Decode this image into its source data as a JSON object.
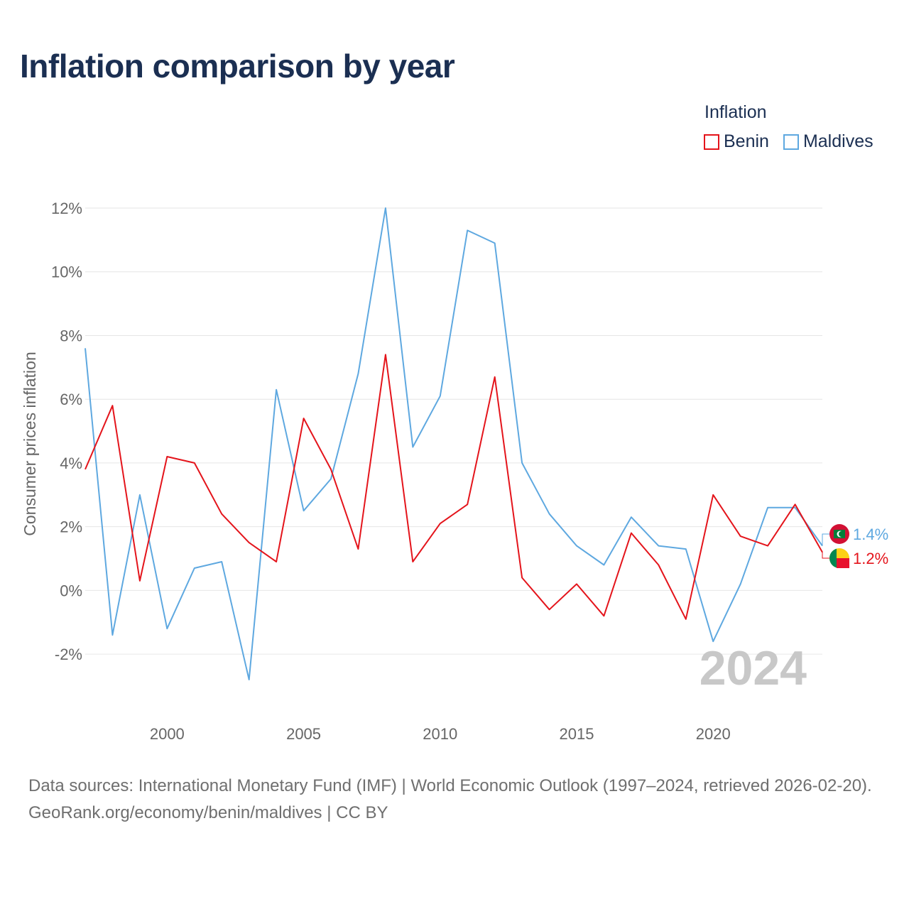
{
  "title": "Inflation comparison by year",
  "legend": {
    "title": "Inflation",
    "items": [
      {
        "label": "Benin",
        "color": "#e4141b"
      },
      {
        "label": "Maldives",
        "color": "#5ea8e0"
      }
    ]
  },
  "footer": {
    "sources": "Data sources: International Monetary Fund (IMF) | World Economic Outlook (1997–2024, retrieved 2026-02-20).",
    "credit": "GeoRank.org/economy/benin/maldives | CC BY"
  },
  "chart_data": {
    "type": "line",
    "title": "Inflation comparison by year",
    "xlabel": "",
    "ylabel": "Consumer prices inflation",
    "xlim": [
      1997,
      2024
    ],
    "ylim": [
      -3,
      12
    ],
    "yticks": [
      -2,
      0,
      2,
      4,
      6,
      8,
      10,
      12
    ],
    "ytick_labels": [
      "-2%",
      "0%",
      "2%",
      "4%",
      "6%",
      "8%",
      "10%",
      "12%"
    ],
    "xticks": [
      2000,
      2005,
      2010,
      2015,
      2020
    ],
    "xtick_labels": [
      "2000",
      "2005",
      "2010",
      "2015",
      "2020"
    ],
    "grid": true,
    "legend_position": "top-right",
    "year_label": "2024",
    "x": [
      1997,
      1998,
      1999,
      2000,
      2001,
      2002,
      2003,
      2004,
      2005,
      2006,
      2007,
      2008,
      2009,
      2010,
      2011,
      2012,
      2013,
      2014,
      2015,
      2016,
      2017,
      2018,
      2019,
      2020,
      2021,
      2022,
      2023,
      2024
    ],
    "series": [
      {
        "name": "Benin",
        "color": "#e4141b",
        "end_label": "1.2%",
        "values": [
          3.8,
          5.8,
          0.3,
          4.2,
          4.0,
          2.4,
          1.5,
          0.9,
          5.4,
          3.8,
          1.3,
          7.4,
          0.9,
          2.1,
          2.7,
          6.7,
          0.4,
          -0.6,
          0.2,
          -0.8,
          1.8,
          0.8,
          -0.9,
          3.0,
          1.7,
          1.4,
          2.7,
          1.2
        ]
      },
      {
        "name": "Maldives",
        "color": "#5ea8e0",
        "end_label": "1.4%",
        "values": [
          7.6,
          -1.4,
          3.0,
          -1.2,
          0.7,
          0.9,
          -2.8,
          6.3,
          2.5,
          3.5,
          6.8,
          12.0,
          4.5,
          6.1,
          11.3,
          10.9,
          4.0,
          2.4,
          1.4,
          0.8,
          2.3,
          1.4,
          1.3,
          -1.6,
          0.2,
          2.6,
          2.6,
          1.4
        ]
      }
    ]
  }
}
